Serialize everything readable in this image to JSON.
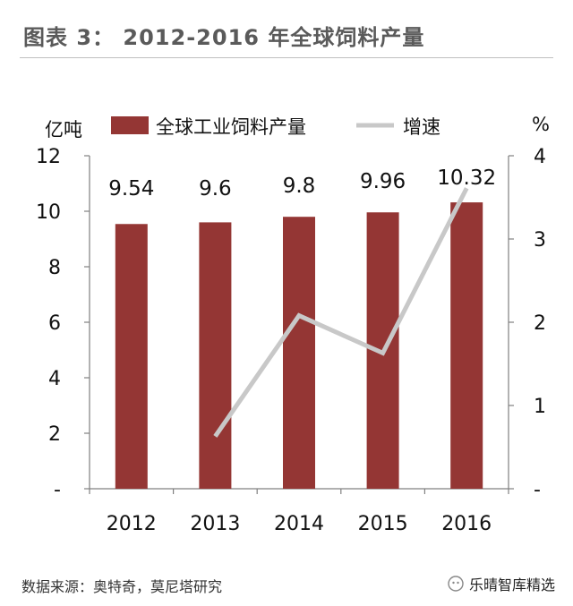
{
  "title": "图表 3： 2012-2016 年全球饲料产量",
  "source": "数据来源：奥特奇，莫尼塔研究",
  "watermark": "乐晴智库精选",
  "chart_data": {
    "type": "bar",
    "categories": [
      "2012",
      "2013",
      "2014",
      "2015",
      "2016"
    ],
    "y_left_label": "亿吨",
    "y_right_label": "%",
    "y_left_ticks": [
      "-",
      "2",
      "4",
      "6",
      "8",
      "10",
      "12"
    ],
    "y_right_ticks": [
      "-",
      "1",
      "2",
      "3",
      "4"
    ],
    "ylim_left": [
      0,
      12
    ],
    "ylim_right": [
      0,
      4
    ],
    "series": [
      {
        "name": "全球工业饲料产量",
        "type": "bar",
        "axis": "left",
        "color": "#943634",
        "values": [
          9.54,
          9.6,
          9.8,
          9.96,
          10.32
        ],
        "data_labels": [
          "9.54",
          "9.6",
          "9.8",
          "9.96",
          "10.32"
        ]
      },
      {
        "name": "增速",
        "type": "line",
        "axis": "right",
        "color": "#c8c8c8",
        "values": [
          null,
          0.63,
          2.08,
          1.63,
          3.61
        ]
      }
    ],
    "legend_position": "top",
    "grid": false
  }
}
